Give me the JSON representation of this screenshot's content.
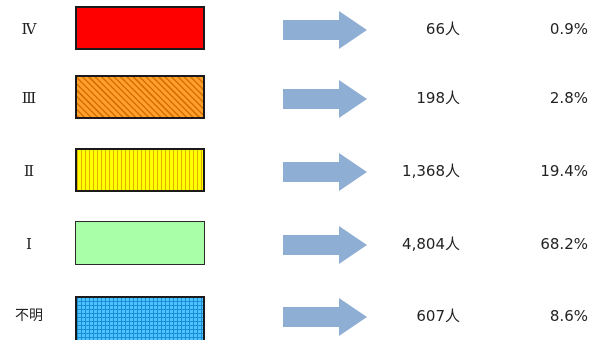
{
  "rows": [
    {
      "label": "Ⅳ",
      "count": "66人",
      "percent": "0.9%",
      "pattern": "solid-red",
      "fill_color": "#ff0000"
    },
    {
      "label": "Ⅲ",
      "count": "198人",
      "percent": "2.8%",
      "pattern": "orange-diagonal-hatch",
      "fill_color": "#ff9f2e"
    },
    {
      "label": "Ⅱ",
      "count": "1,368人",
      "percent": "19.4%",
      "pattern": "yellow-vertical-lines",
      "fill_color": "#ffff00"
    },
    {
      "label": "Ⅰ",
      "count": "4,804人",
      "percent": "68.2%",
      "pattern": "light-green-solid",
      "fill_color": "#a8ffa8"
    },
    {
      "label": "不明",
      "count": "607人",
      "percent": "8.6%",
      "pattern": "blue-grid",
      "fill_color": "#4fc3ff"
    }
  ],
  "arrow_color": "#8faed4",
  "arrow_icon": "right-arrow-icon"
}
